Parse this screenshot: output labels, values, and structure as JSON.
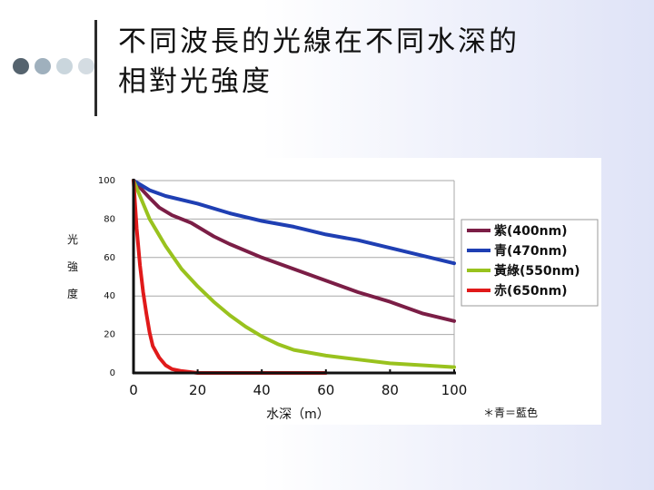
{
  "slide": {
    "title": "不同波長的光線在不同水深的相對光強度",
    "decor_dot_colors": [
      "#55636e",
      "#9fb0bd",
      "#cad6dd",
      "#d4dce2"
    ]
  },
  "chart_data": {
    "type": "line",
    "title": "",
    "xlabel": "水深（m）",
    "ylabel": "光強度",
    "xlim": [
      0,
      100
    ],
    "ylim": [
      0,
      100
    ],
    "x_ticks": [
      "0",
      "20",
      "40",
      "60",
      "80",
      "100"
    ],
    "y_ticks": [
      "0",
      "20",
      "40",
      "60",
      "80",
      "100"
    ],
    "grid": "horizontal",
    "legend": "right",
    "footnote": "＊青＝藍色",
    "series": [
      {
        "name": "紫(400nm)",
        "color": "#7b1e46",
        "points": [
          [
            0,
            100
          ],
          [
            5,
            91
          ],
          [
            8,
            86
          ],
          [
            12,
            82
          ],
          [
            18,
            78
          ],
          [
            25,
            71
          ],
          [
            30,
            67
          ],
          [
            40,
            60
          ],
          [
            50,
            54
          ],
          [
            60,
            48
          ],
          [
            70,
            42
          ],
          [
            80,
            37
          ],
          [
            90,
            31
          ],
          [
            100,
            27
          ]
        ]
      },
      {
        "name": "青(470nm)",
        "color": "#1f3fb3",
        "points": [
          [
            0,
            100
          ],
          [
            5,
            95
          ],
          [
            10,
            92
          ],
          [
            20,
            88
          ],
          [
            30,
            83
          ],
          [
            40,
            79
          ],
          [
            50,
            76
          ],
          [
            60,
            72
          ],
          [
            70,
            69
          ],
          [
            80,
            65
          ],
          [
            90,
            61
          ],
          [
            100,
            57
          ]
        ]
      },
      {
        "name": "黃綠(550nm)",
        "color": "#99c21e",
        "points": [
          [
            0,
            100
          ],
          [
            5,
            80
          ],
          [
            10,
            66
          ],
          [
            15,
            54
          ],
          [
            20,
            45
          ],
          [
            25,
            37
          ],
          [
            30,
            30
          ],
          [
            35,
            24
          ],
          [
            40,
            19
          ],
          [
            45,
            15
          ],
          [
            50,
            12
          ],
          [
            60,
            9
          ],
          [
            70,
            7
          ],
          [
            80,
            5
          ],
          [
            90,
            4
          ],
          [
            100,
            3
          ]
        ]
      },
      {
        "name": "赤(650nm)",
        "color": "#e01a1a",
        "points": [
          [
            0,
            100
          ],
          [
            1,
            75
          ],
          [
            2,
            56
          ],
          [
            3,
            42
          ],
          [
            4,
            31
          ],
          [
            5,
            21
          ],
          [
            6,
            14
          ],
          [
            8,
            8
          ],
          [
            10,
            4
          ],
          [
            12,
            2
          ],
          [
            15,
            1
          ],
          [
            20,
            0
          ],
          [
            30,
            0
          ],
          [
            40,
            0
          ],
          [
            50,
            0
          ],
          [
            60,
            0
          ]
        ]
      }
    ]
  }
}
